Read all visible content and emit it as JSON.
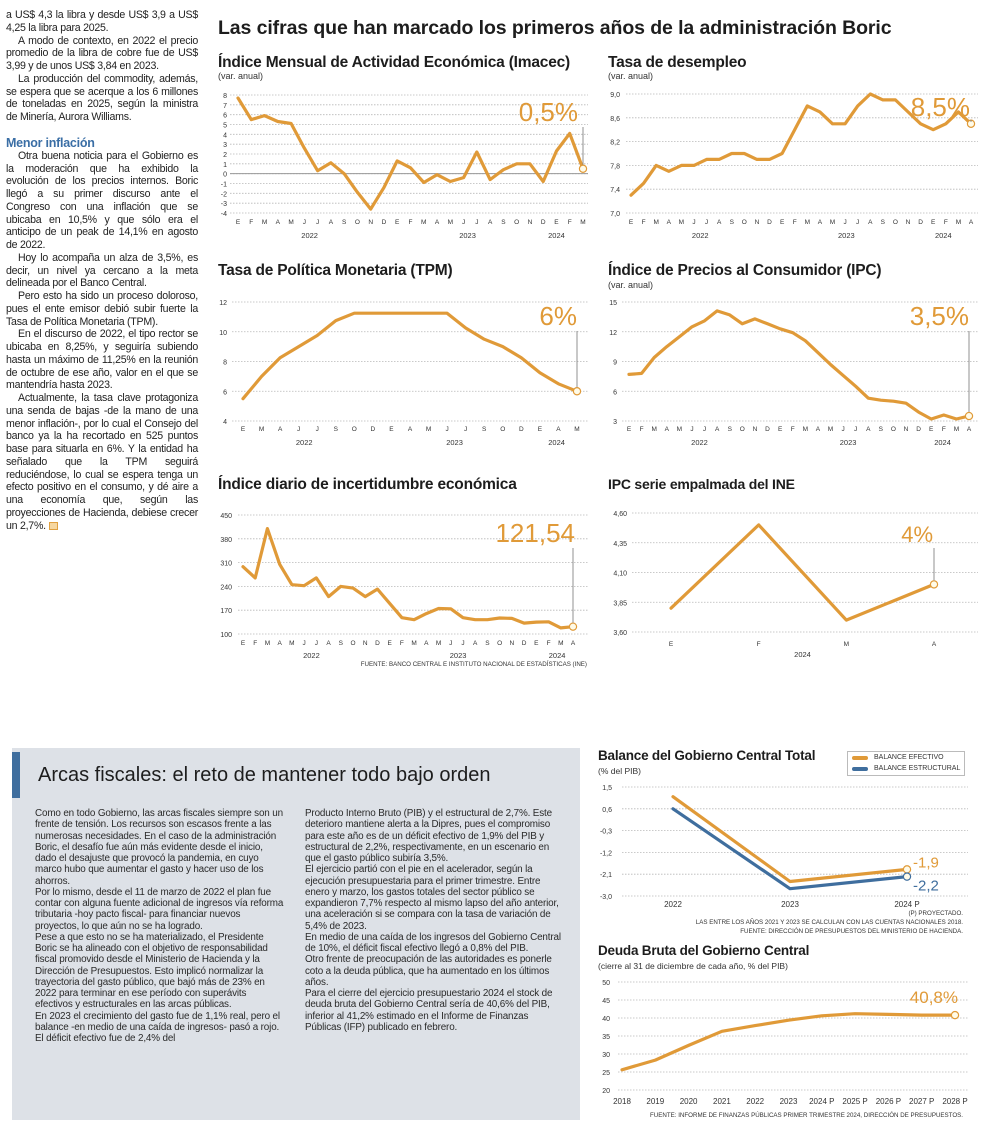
{
  "left_column": {
    "paragraphs_top": [
      "a US$ 4,3 la libra y desde US$ 3,9 a US$ 4,25 la libra para 2025.",
      "A modo de contexto, en 2022 el precio promedio de la libra de cobre fue de US$ 3,99 y de unos US$ 3,84 en 2023.",
      "La producción del commodity, además, se espera que se acerque a los 6 millones de toneladas en 2025, según la ministra de Minería, Aurora Williams."
    ],
    "heading": "Menor inflación",
    "paragraphs_bottom": [
      "Otra buena noticia para el Gobierno es la moderación que ha exhibido la evolución de los precios internos. Boric llegó a su primer discurso ante el Congreso con una inflación que se ubicaba en 10,5% y que sólo era el anticipo de un peak de 14,1% en agosto de 2022.",
      "Hoy lo acompaña un alza de 3,5%, es decir, un nivel ya cercano a la meta delineada por el Banco Central.",
      "Pero esto ha sido un proceso doloroso, pues el ente emisor debió subir fuerte la Tasa de Política Monetaria (TPM).",
      "En el discurso de 2022, el tipo rector se ubicaba en 8,25%, y seguiría subiendo hasta un máximo de 11,25% en la reunión de octubre de ese año, valor en el que se mantendría hasta 2023.",
      "Actualmente, la tasa clave protagoniza una senda de bajas -de la mano de una menor inflación-, por lo cual el Consejo del banco ya la ha recortado en 525 puntos base para situarla en 6%. Y la entidad ha señalado que la TPM seguirá reduciéndose, lo cual se espera tenga un efecto positivo en el consumo, y dé aire a una economía que, según las proyecciones de Hacienda, debiese crecer un 2,7%."
    ]
  },
  "header": {
    "title": "Las cifras que han marcado los primeros años de la administración Boric"
  },
  "source_top": "FUENTE: BANCO CENTRAL E INSTITUTO NACIONAL DE ESTADÍSTICAS (INE)",
  "box": {
    "title": "Arcas fiscales: el reto de mantener todo bajo orden",
    "col1": [
      "Como en todo Gobierno, las arcas fiscales siempre son un frente de tensión. Los recursos son escasos frente a las numerosas necesidades. En el caso de la administración Boric, el desafío fue aún más evidente desde el inicio, dado el desajuste que provocó la pandemia, en cuyo marco hubo que aumentar el gasto y hacer uso de los ahorros.",
      "Por lo mismo, desde el 11 de marzo de 2022 el plan fue contar con alguna fuente adicional de ingresos vía reforma tributaria -hoy pacto fiscal- para financiar nuevos proyectos, lo que aún no se ha logrado.",
      "Pese a que esto no se ha materializado, el Presidente Boric se ha alineado con el objetivo de responsabilidad fiscal promovido desde el Ministerio de Hacienda y la Dirección de Presupuestos. Esto implicó normalizar la trayectoria del gasto público, que bajó más de 23% en 2022 para terminar en ese período con superávits efectivos y estructurales en las arcas públicas.",
      "En 2023 el crecimiento del gasto fue de 1,1% real, pero el balance -en medio de una caída de ingresos- pasó a rojo. El déficit efectivo fue de 2,4% del"
    ],
    "col2": [
      "Producto Interno Bruto (PIB) y el estructural de 2,7%. Este deterioro mantiene alerta a la Dipres, pues el compromiso para este año es de un déficit efectivo de 1,9% del PIB y estructural de 2,2%, respectivamente, en un escenario en que el gasto público subiría 3,5%.",
      "El ejercicio partió con el pie en el acelerador, según la ejecución presupuestaria para el primer trimestre. Entre enero y marzo, los gastos totales del sector público se expandieron 7,7% respecto al mismo lapso del año anterior, una aceleración si se compara con la tasa de variación de 5,4% de 2023.",
      "En medio de una caída de los ingresos del Gobierno Central de 10%, el déficit fiscal efectivo llegó a 0,8% del PIB.",
      "Otro frente de preocupación de las autoridades es ponerle coto a la deuda pública, que ha aumentado en los últimos años.",
      "Para el cierre del ejercicio presupuestario 2024 el stock de deuda bruta del Gobierno Central sería de 40,6% del PIB, inferior al 41,2% estimado en el Informe de Finanzas Públicas (IFP) publicado en febrero."
    ]
  },
  "colors": {
    "orange": "#e09a38",
    "blue": "#3f6e9e",
    "grid": "#b8b8b8",
    "box_bg": "#dde1e7"
  },
  "chart_data": [
    {
      "id": "imacec",
      "type": "line",
      "title": "Índice Mensual de Actividad Económica (Imacec)",
      "subtitle": "(var. anual)",
      "x_labels": [
        "E",
        "F",
        "M",
        "A",
        "M",
        "J",
        "J",
        "A",
        "S",
        "O",
        "N",
        "D",
        "E",
        "F",
        "M",
        "A",
        "M",
        "J",
        "J",
        "A",
        "S",
        "O",
        "N",
        "D",
        "E",
        "F",
        "M"
      ],
      "year_labels": [
        "2022",
        "2023",
        "2024"
      ],
      "ylim": [
        -4,
        8
      ],
      "yticks": [
        8,
        7,
        6,
        5,
        4,
        3,
        2,
        1,
        0,
        -1,
        -2,
        -3,
        -4
      ],
      "tick_labels": [
        "8",
        "7",
        "6",
        "5",
        "4",
        "3",
        "2",
        "1",
        "0",
        "-1",
        "-2",
        "-3",
        "-4"
      ],
      "grid": true,
      "zero_line": true,
      "series": [
        {
          "color": "#e09a38",
          "values": [
            7.7,
            5.5,
            5.9,
            5.3,
            5.1,
            2.6,
            0.3,
            1.1,
            0.0,
            -1.9,
            -3.6,
            -1.4,
            1.3,
            0.6,
            -0.9,
            -0.1,
            -0.8,
            -0.4,
            2.2,
            -0.6,
            0.4,
            1.0,
            1.0,
            -0.8,
            2.3,
            4.1,
            0.5
          ]
        }
      ],
      "highlight": "0,5%"
    },
    {
      "id": "desempleo",
      "type": "line",
      "title": "Tasa de desempleo",
      "subtitle": "(var. anual)",
      "x_labels": [
        "E",
        "F",
        "M",
        "A",
        "M",
        "J",
        "J",
        "A",
        "S",
        "O",
        "N",
        "D",
        "E",
        "F",
        "M",
        "A",
        "M",
        "J",
        "J",
        "A",
        "S",
        "O",
        "N",
        "D",
        "E",
        "F",
        "M",
        "A"
      ],
      "year_labels": [
        "2022",
        "2023",
        "2024"
      ],
      "ylim": [
        7.0,
        9.0
      ],
      "yticks": [
        9.0,
        8.6,
        8.2,
        7.8,
        7.4,
        7.0
      ],
      "tick_labels": [
        "9,0",
        "8,6",
        "8,2",
        "7,8",
        "7,4",
        "7,0"
      ],
      "grid": true,
      "series": [
        {
          "color": "#e09a38",
          "values": [
            7.3,
            7.5,
            7.8,
            7.7,
            7.8,
            7.8,
            7.9,
            7.9,
            8.0,
            8.0,
            7.9,
            7.9,
            8.0,
            8.4,
            8.8,
            8.7,
            8.5,
            8.5,
            8.8,
            9.0,
            8.9,
            8.9,
            8.7,
            8.5,
            8.4,
            8.5,
            8.7,
            8.5
          ]
        }
      ],
      "highlight": "8,5%"
    },
    {
      "id": "tpm",
      "type": "line",
      "title": "Tasa de Política Monetaria (TPM)",
      "subtitle": "",
      "x_labels": [
        "E",
        "M",
        "A",
        "J",
        "J",
        "S",
        "O",
        "D",
        "E",
        "A",
        "M",
        "J",
        "J",
        "S",
        "O",
        "D",
        "E",
        "A",
        "M"
      ],
      "year_labels": [
        "2022",
        "2023",
        "2024"
      ],
      "ylim": [
        4,
        12
      ],
      "yticks": [
        12,
        10,
        8,
        6,
        4
      ],
      "tick_labels": [
        "12",
        "10",
        "8",
        "6",
        "4"
      ],
      "grid": true,
      "series": [
        {
          "color": "#e09a38",
          "values": [
            5.5,
            7.0,
            8.25,
            9.0,
            9.75,
            10.75,
            11.25,
            11.25,
            11.25,
            11.25,
            11.25,
            11.25,
            10.25,
            9.5,
            9.0,
            8.25,
            7.25,
            6.5,
            6.0
          ]
        }
      ],
      "highlight": "6%"
    },
    {
      "id": "ipc",
      "type": "line",
      "title": "Índice de Precios al Consumidor (IPC)",
      "subtitle": "(var. anual)",
      "x_labels": [
        "E",
        "F",
        "M",
        "A",
        "M",
        "J",
        "J",
        "A",
        "S",
        "O",
        "N",
        "D",
        "E",
        "F",
        "M",
        "A",
        "M",
        "J",
        "J",
        "A",
        "S",
        "O",
        "N",
        "D",
        "E",
        "F",
        "M",
        "A"
      ],
      "year_labels": [
        "2022",
        "2023",
        "2024"
      ],
      "ylim": [
        3,
        15
      ],
      "yticks": [
        15,
        12,
        9,
        6,
        3
      ],
      "tick_labels": [
        "15",
        "12",
        "9",
        "6",
        "3"
      ],
      "grid": true,
      "series": [
        {
          "color": "#e09a38",
          "values": [
            7.7,
            7.8,
            9.4,
            10.5,
            11.5,
            12.5,
            13.1,
            14.1,
            13.7,
            12.8,
            13.3,
            12.8,
            12.3,
            11.9,
            11.1,
            9.9,
            8.7,
            7.6,
            6.5,
            5.3,
            5.1,
            5.0,
            4.8,
            3.9,
            3.2,
            3.6,
            3.2,
            3.5
          ]
        }
      ],
      "highlight": "3,5%"
    },
    {
      "id": "incertidumbre",
      "type": "line",
      "title": "Índice diario de incertidumbre económica",
      "subtitle": "",
      "x_labels": [
        "E",
        "F",
        "M",
        "A",
        "M",
        "J",
        "J",
        "A",
        "S",
        "O",
        "N",
        "D",
        "E",
        "F",
        "M",
        "A",
        "M",
        "J",
        "J",
        "A",
        "S",
        "O",
        "N",
        "D",
        "E",
        "F",
        "M",
        "A"
      ],
      "year_labels": [
        "2022",
        "2023",
        "2024"
      ],
      "ylim": [
        100,
        450
      ],
      "yticks": [
        450,
        380,
        310,
        240,
        170,
        100
      ],
      "tick_labels": [
        "450",
        "380",
        "310",
        "240",
        "170",
        "100"
      ],
      "grid": true,
      "series": [
        {
          "color": "#e09a38",
          "values": [
            298,
            265,
            410,
            305,
            245,
            242,
            265,
            210,
            240,
            235,
            210,
            232,
            190,
            148,
            142,
            160,
            175,
            174,
            148,
            142,
            142,
            147,
            146,
            132,
            135,
            136,
            118,
            121.54
          ]
        }
      ],
      "highlight": "121,54"
    },
    {
      "id": "ipc_empalmada",
      "type": "line",
      "title": "IPC serie empalmada del INE",
      "subtitle": "",
      "x_labels": [
        "E",
        "F",
        "M",
        "A"
      ],
      "year_labels": [
        "2024"
      ],
      "ylim": [
        3.6,
        4.6
      ],
      "yticks": [
        4.6,
        4.35,
        4.1,
        3.85,
        3.6
      ],
      "tick_labels": [
        "4,60",
        "4,35",
        "4,10",
        "3,85",
        "3,60"
      ],
      "grid": true,
      "series": [
        {
          "color": "#e09a38",
          "values": [
            3.8,
            4.5,
            3.7,
            4.0
          ]
        }
      ],
      "highlight": "4%"
    },
    {
      "id": "balance",
      "type": "line",
      "title": "Balance del Gobierno Central Total",
      "subtitle": "(% del PIB)",
      "x_labels": [
        "2022",
        "2023",
        "2024 P"
      ],
      "year_labels": [],
      "ylim": [
        -3.0,
        1.5
      ],
      "yticks": [
        1.5,
        0.6,
        -0.3,
        -1.2,
        -2.1,
        -3.0
      ],
      "tick_labels": [
        "1,5",
        "0,6",
        "-0,3",
        "-1,2",
        "-2,1",
        "-3,0"
      ],
      "grid": true,
      "legend_position": "top-right",
      "series": [
        {
          "name": "BALANCE EFECTIVO",
          "color": "#e09a38",
          "values": [
            1.1,
            -2.4,
            -1.9
          ],
          "end_label": "-1,9"
        },
        {
          "name": "BALANCE ESTRUCTURAL",
          "color": "#3f6e9e",
          "values": [
            0.6,
            -2.7,
            -2.2
          ],
          "end_label": "-2,2"
        }
      ],
      "notes": [
        "(P) PROYECTADO.",
        "LAS ENTRE LOS AÑOS 2021 Y 2023 SE CALCULAN  CON LAS CUENTAS NACIONALES 2018.",
        "FUENTE: DIRECCIÓN DE PRESUPUESTOS DEL MINISTERIO DE HACIENDA."
      ]
    },
    {
      "id": "deuda",
      "type": "line",
      "title": "Deuda Bruta del Gobierno Central",
      "subtitle": "(cierre al 31 de diciembre de cada año, % del PIB)",
      "x_labels": [
        "2018",
        "2019",
        "2020",
        "2021",
        "2022",
        "2023",
        "2024 P",
        "2025 P",
        "2026 P",
        "2027 P",
        "2028 P"
      ],
      "year_labels": [],
      "ylim": [
        20,
        50
      ],
      "yticks": [
        50,
        45,
        40,
        35,
        30,
        25,
        20
      ],
      "tick_labels": [
        "50",
        "45",
        "40",
        "35",
        "30",
        "25",
        "20"
      ],
      "grid": true,
      "series": [
        {
          "color": "#e09a38",
          "values": [
            25.6,
            28.3,
            32.4,
            36.3,
            37.9,
            39.4,
            40.6,
            41.2,
            41.0,
            40.8,
            40.8
          ]
        }
      ],
      "highlight": "40,8%",
      "notes": [
        "FUENTE: INFORME DE FINANZAS PÚBLICAS PRIMER TRIMESTRE 2024, DIRECCIÓN DE PRESUPUESTOS."
      ]
    }
  ]
}
